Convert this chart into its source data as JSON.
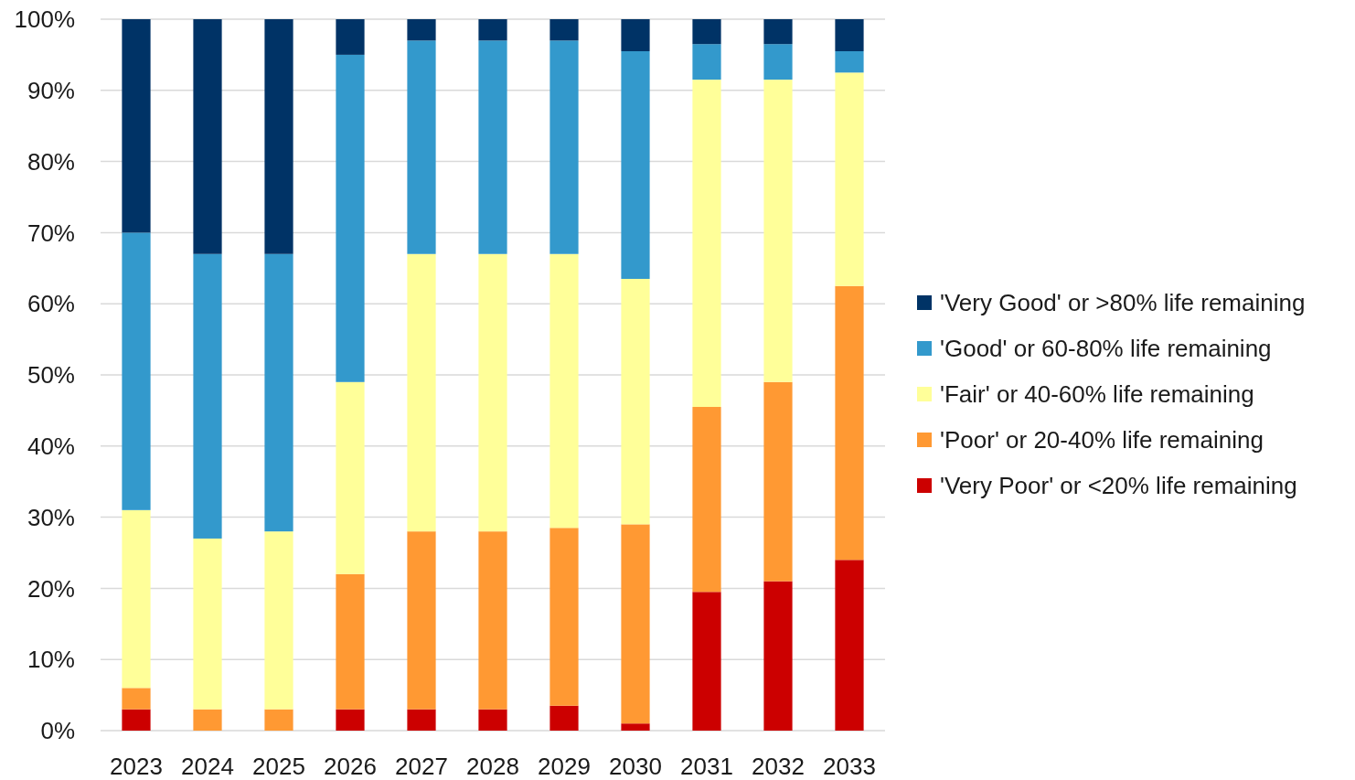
{
  "chart_data": {
    "type": "bar",
    "stacked": true,
    "categories": [
      "2023",
      "2024",
      "2025",
      "2026",
      "2027",
      "2028",
      "2029",
      "2030",
      "2031",
      "2032",
      "2033"
    ],
    "series": [
      {
        "name": "'Very Poor' or <20% life remaining",
        "color": "#cc0000",
        "values": [
          3,
          0,
          0,
          3,
          3,
          3,
          3.5,
          1,
          19.5,
          21,
          24
        ]
      },
      {
        "name": "'Poor' or 20-40% life remaining",
        "color": "#ff9933",
        "values": [
          3,
          3,
          3,
          19,
          25,
          25,
          25,
          28,
          26,
          28,
          38.5
        ]
      },
      {
        "name": "'Fair' or 40-60% life remaining",
        "color": "#ffff99",
        "values": [
          25,
          24,
          25,
          27,
          39,
          39,
          38.5,
          34.5,
          46,
          42.5,
          30
        ]
      },
      {
        "name": "'Good' or 60-80% life remaining",
        "color": "#3399cc",
        "values": [
          39,
          40,
          39,
          46,
          30,
          30,
          30,
          32,
          5,
          5,
          3
        ]
      },
      {
        "name": "'Very Good' or >80% life remaining",
        "color": "#003366",
        "values": [
          30,
          33,
          33,
          5,
          3,
          3,
          3,
          4.5,
          3.5,
          3.5,
          4.5
        ]
      }
    ],
    "ylim": [
      0,
      100
    ],
    "yticks": [
      {
        "value": 0,
        "label": "0%"
      },
      {
        "value": 10,
        "label": "10%"
      },
      {
        "value": 20,
        "label": "20%"
      },
      {
        "value": 30,
        "label": "30%"
      },
      {
        "value": 40,
        "label": "40%"
      },
      {
        "value": 50,
        "label": "50%"
      },
      {
        "value": 60,
        "label": "60%"
      },
      {
        "value": 70,
        "label": "70%"
      },
      {
        "value": 80,
        "label": "80%"
      },
      {
        "value": 90,
        "label": "90%"
      },
      {
        "value": 100,
        "label": "100%"
      }
    ],
    "grid": "y",
    "legend": "right"
  }
}
